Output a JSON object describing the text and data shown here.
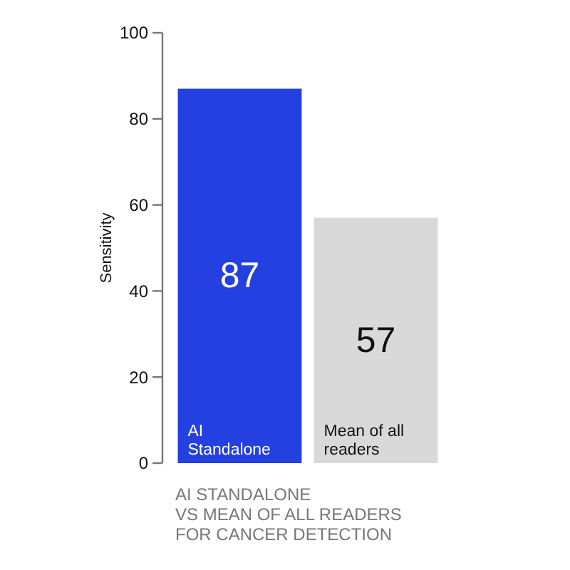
{
  "chart_data": {
    "type": "bar",
    "title": "AI STANDALONE\nVS MEAN OF ALL READERS\nFOR CANCER DETECTION",
    "ylabel": "Sensitivity",
    "categories": [
      "AI Standalone",
      "Mean of all readers"
    ],
    "values": [
      87,
      57
    ],
    "colors": [
      "#2440e0",
      "#d9d9d9"
    ],
    "ylim": [
      0,
      100
    ],
    "yticks": [
      0,
      20,
      40,
      60,
      80,
      100
    ],
    "data_labels": true
  }
}
